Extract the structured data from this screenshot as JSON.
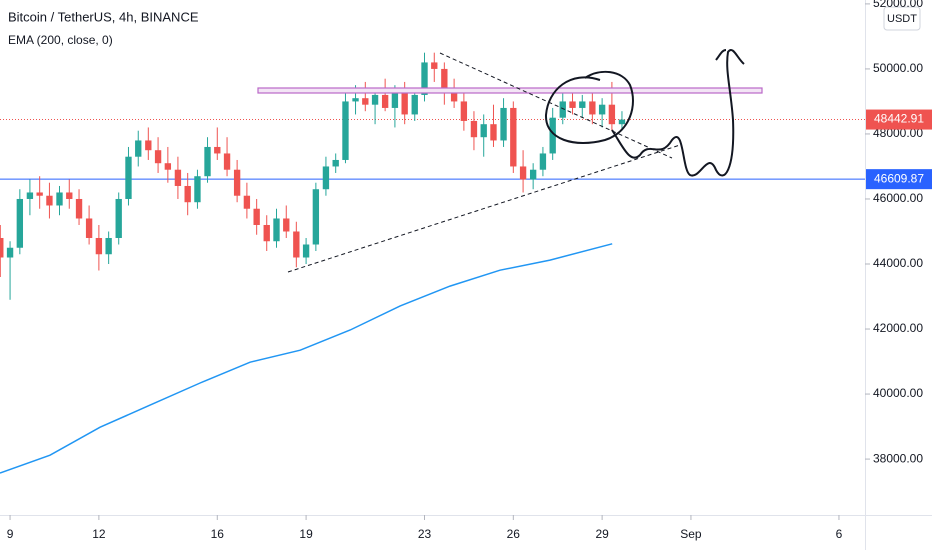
{
  "chart_data": {
    "type": "candlestick",
    "title": "Bitcoin / TetherUS, 4h, BINANCE",
    "indicator": "EMA (200, close, 0)",
    "currency": "USDT",
    "up_color": "#26a69a",
    "down_color": "#ef5350",
    "x": [
      8.67,
      9.0,
      9.33,
      9.67,
      10.0,
      10.33,
      10.67,
      11.0,
      11.33,
      11.67,
      12.0,
      12.33,
      12.67,
      13.0,
      13.33,
      13.67,
      14.0,
      14.33,
      14.67,
      15.0,
      15.33,
      15.67,
      16.0,
      16.33,
      16.67,
      17.0,
      17.33,
      17.67,
      18.0,
      18.33,
      18.67,
      19.0,
      19.33,
      19.67,
      20.0,
      20.33,
      20.67,
      21.0,
      21.33,
      21.67,
      22.0,
      22.33,
      22.67,
      23.0,
      23.33,
      23.67,
      24.0,
      24.33,
      24.67,
      25.0,
      25.33,
      25.67,
      26.0,
      26.33,
      26.67,
      27.0,
      27.33,
      27.67,
      28.0,
      28.33,
      28.67,
      29.0,
      29.33,
      29.67
    ],
    "open": [
      44800,
      44200,
      44500,
      46000,
      46200,
      46100,
      45800,
      46200,
      46000,
      45400,
      44800,
      44300,
      44800,
      46000,
      47300,
      47800,
      47500,
      47100,
      46900,
      46400,
      45900,
      46700,
      47600,
      47400,
      46900,
      46100,
      45700,
      45200,
      44700,
      45400,
      45000,
      44200,
      44600,
      46300,
      47000,
      47200,
      49000,
      49100,
      48900,
      49200,
      48800,
      49300,
      48600,
      49200,
      50200,
      50000,
      49300,
      49000,
      48400,
      47900,
      48300,
      47800,
      48800,
      47000,
      46600,
      46900,
      47400,
      48500,
      49000,
      48800,
      49000,
      48600,
      48900,
      48300
    ],
    "high": [
      45200,
      44700,
      46300,
      46600,
      46700,
      46500,
      46400,
      46600,
      46300,
      45800,
      45200,
      45000,
      46200,
      47600,
      48100,
      48200,
      47900,
      47600,
      47300,
      46800,
      46900,
      47900,
      48200,
      47900,
      47200,
      46500,
      46000,
      45500,
      45700,
      45800,
      45300,
      44800,
      46500,
      47300,
      47400,
      49300,
      49500,
      49600,
      49400,
      49700,
      49500,
      49600,
      49400,
      50500,
      50500,
      50200,
      49700,
      49400,
      48700,
      48600,
      48900,
      49100,
      49000,
      47500,
      47100,
      47600,
      48800,
      49300,
      49300,
      49200,
      49300,
      49100,
      49600,
      48700
    ],
    "low": [
      43600,
      42900,
      44300,
      45500,
      45700,
      45400,
      45500,
      45700,
      45200,
      44600,
      43800,
      44000,
      44600,
      45800,
      47000,
      47200,
      46800,
      46500,
      46000,
      45500,
      45700,
      46500,
      47200,
      46700,
      45900,
      45400,
      44900,
      44400,
      44500,
      44800,
      43900,
      44000,
      44400,
      46100,
      46800,
      47100,
      48600,
      48700,
      48300,
      48700,
      48200,
      48300,
      48400,
      49000,
      49600,
      48900,
      48800,
      48100,
      47500,
      47300,
      47600,
      47600,
      46800,
      46200,
      46300,
      46700,
      47200,
      48300,
      48600,
      48500,
      48300,
      48200,
      48100,
      48100
    ],
    "close": [
      44200,
      44500,
      46000,
      46200,
      46100,
      45800,
      46200,
      46000,
      45400,
      44800,
      44300,
      44800,
      46000,
      47300,
      47800,
      47500,
      47100,
      46900,
      46400,
      45900,
      46700,
      47600,
      47400,
      46900,
      46100,
      45700,
      45200,
      44700,
      45400,
      45000,
      44200,
      44600,
      46300,
      47000,
      47200,
      49000,
      49100,
      48900,
      49200,
      48800,
      49300,
      48600,
      49200,
      50200,
      50000,
      49300,
      49000,
      48400,
      47900,
      48300,
      47800,
      48800,
      47000,
      46600,
      46900,
      47400,
      48500,
      49000,
      48800,
      49000,
      48600,
      48900,
      48300,
      48442.91
    ],
    "ema": {
      "color": "#2196f3",
      "x": [
        8.66,
        10.35,
        12.04,
        13.73,
        15.42,
        17.11,
        18.8,
        20.49,
        22.18,
        23.86,
        25.55,
        27.24,
        29.34
      ],
      "values": [
        37570,
        38120,
        38980,
        39660,
        40340,
        40980,
        41350,
        41970,
        42710,
        43320,
        43810,
        44120,
        44620
      ]
    },
    "last_price": 48442.91,
    "level": 46609.87,
    "level_color": "#2962ff",
    "xlim": [
      8.66,
      37.88
    ],
    "xticks": [
      9,
      12,
      16,
      19,
      23,
      26,
      29,
      {
        "value": 32,
        "label": "Sep"
      },
      {
        "value": 37,
        "label": "6"
      }
    ],
    "ylim": [
      36280,
      52120
    ],
    "yticks": [
      {
        "value": 38000,
        "label": "38000.00"
      },
      {
        "value": 40000,
        "label": "40000.00"
      },
      {
        "value": 42000,
        "label": "42000.00"
      },
      {
        "value": 44000,
        "label": "44000.00"
      },
      {
        "value": 46000,
        "label": "46000.00"
      },
      {
        "value": 48000,
        "label": "48000.00"
      },
      {
        "value": 50000,
        "label": "50000.00"
      },
      {
        "value": 52000,
        "label": "52000.00"
      }
    ]
  }
}
